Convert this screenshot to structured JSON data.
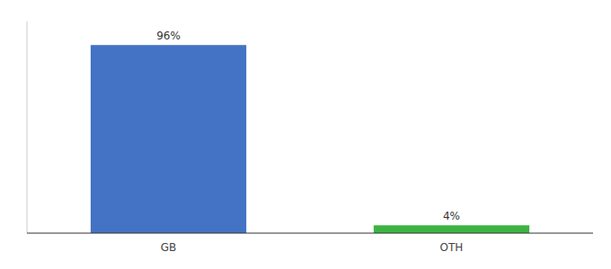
{
  "chart_data": {
    "type": "bar",
    "categories": [
      "GB",
      "OTH"
    ],
    "values": [
      96,
      4
    ],
    "value_labels": [
      "96%",
      "4%"
    ],
    "colors": [
      "#4472c4",
      "#3cb540"
    ],
    "ylim": [
      0,
      108
    ],
    "data_labels": true,
    "tick_labels": "x",
    "grid": false
  }
}
